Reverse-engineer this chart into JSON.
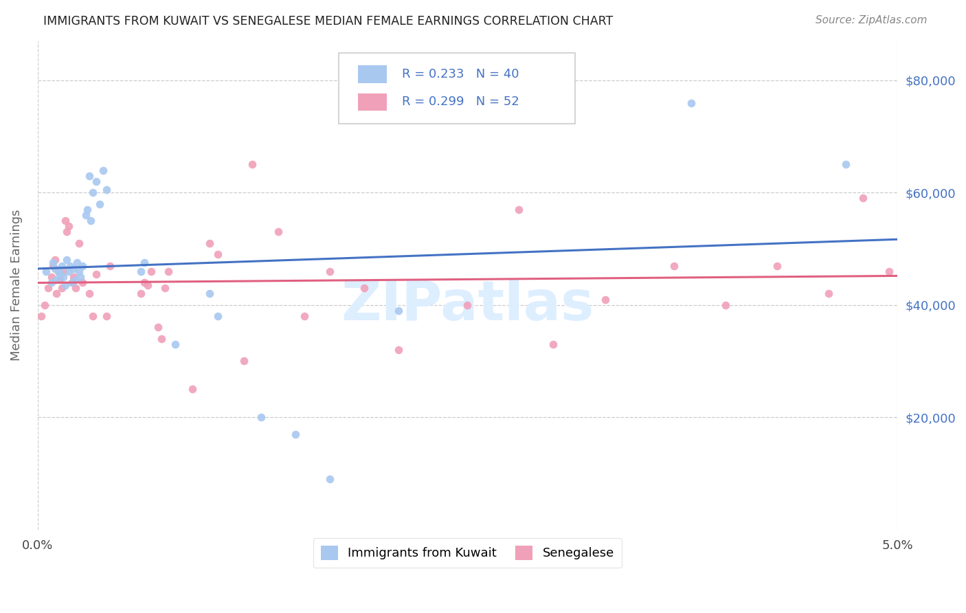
{
  "title": "IMMIGRANTS FROM KUWAIT VS SENEGALESE MEDIAN FEMALE EARNINGS CORRELATION CHART",
  "source": "Source: ZipAtlas.com",
  "ylabel": "Median Female Earnings",
  "ytick_labels": [
    "$20,000",
    "$40,000",
    "$60,000",
    "$80,000"
  ],
  "ytick_values": [
    20000,
    40000,
    60000,
    80000
  ],
  "ymin": 0,
  "ymax": 87000,
  "xmin": 0.0,
  "xmax": 0.05,
  "xtick_values": [
    0.0,
    0.05
  ],
  "xtick_labels": [
    "0.0%",
    "5.0%"
  ],
  "legend_r1": "0.233",
  "legend_n1": "40",
  "legend_r2": "0.299",
  "legend_n2": "52",
  "color_kuwait": "#a8c8f0",
  "color_senegal": "#f0a0b8",
  "color_kuwait_line": "#4472c4",
  "color_senegal_line": "#e06080",
  "background_color": "#ffffff",
  "watermark": "ZIPatlas",
  "watermark_color": "#ddeeff",
  "kuwait_scatter_x": [
    0.0005,
    0.0008,
    0.0009,
    0.001,
    0.0011,
    0.0012,
    0.0013,
    0.0014,
    0.0015,
    0.0016,
    0.0017,
    0.0018,
    0.0019,
    0.002,
    0.0021,
    0.0022,
    0.0023,
    0.0024,
    0.0025,
    0.0026,
    0.003,
    0.0032,
    0.0034,
    0.0036,
    0.0038,
    0.004,
    0.006,
    0.0062,
    0.008,
    0.01,
    0.0105,
    0.013,
    0.015,
    0.017,
    0.021,
    0.038,
    0.047,
    0.0028,
    0.0029,
    0.0031
  ],
  "kuwait_scatter_y": [
    46000,
    44000,
    47500,
    46500,
    44500,
    46000,
    45500,
    47000,
    45000,
    43500,
    48000,
    46000,
    47000,
    44000,
    46500,
    44500,
    47500,
    46000,
    45000,
    47000,
    63000,
    60000,
    62000,
    58000,
    64000,
    60500,
    46000,
    47500,
    33000,
    42000,
    38000,
    20000,
    17000,
    9000,
    39000,
    76000,
    65000,
    56000,
    57000,
    55000
  ],
  "senegal_scatter_x": [
    0.0002,
    0.0004,
    0.0006,
    0.0008,
    0.0009,
    0.001,
    0.0011,
    0.0012,
    0.0013,
    0.0014,
    0.0015,
    0.0016,
    0.0017,
    0.0018,
    0.002,
    0.0021,
    0.0022,
    0.0024,
    0.0026,
    0.003,
    0.0032,
    0.0034,
    0.004,
    0.0042,
    0.006,
    0.0062,
    0.0064,
    0.0066,
    0.007,
    0.0072,
    0.0074,
    0.0076,
    0.009,
    0.01,
    0.0105,
    0.012,
    0.0125,
    0.014,
    0.0155,
    0.017,
    0.019,
    0.021,
    0.025,
    0.028,
    0.03,
    0.033,
    0.037,
    0.04,
    0.043,
    0.046,
    0.048,
    0.0495
  ],
  "senegal_scatter_y": [
    38000,
    40000,
    43000,
    45000,
    47000,
    48000,
    42000,
    46000,
    44500,
    43000,
    46000,
    55000,
    53000,
    54000,
    44000,
    45000,
    43000,
    51000,
    44000,
    42000,
    38000,
    45500,
    38000,
    47000,
    42000,
    44000,
    43500,
    46000,
    36000,
    34000,
    43000,
    46000,
    25000,
    51000,
    49000,
    30000,
    65000,
    53000,
    38000,
    46000,
    43000,
    32000,
    40000,
    57000,
    33000,
    41000,
    47000,
    40000,
    47000,
    42000,
    59000,
    46000
  ]
}
